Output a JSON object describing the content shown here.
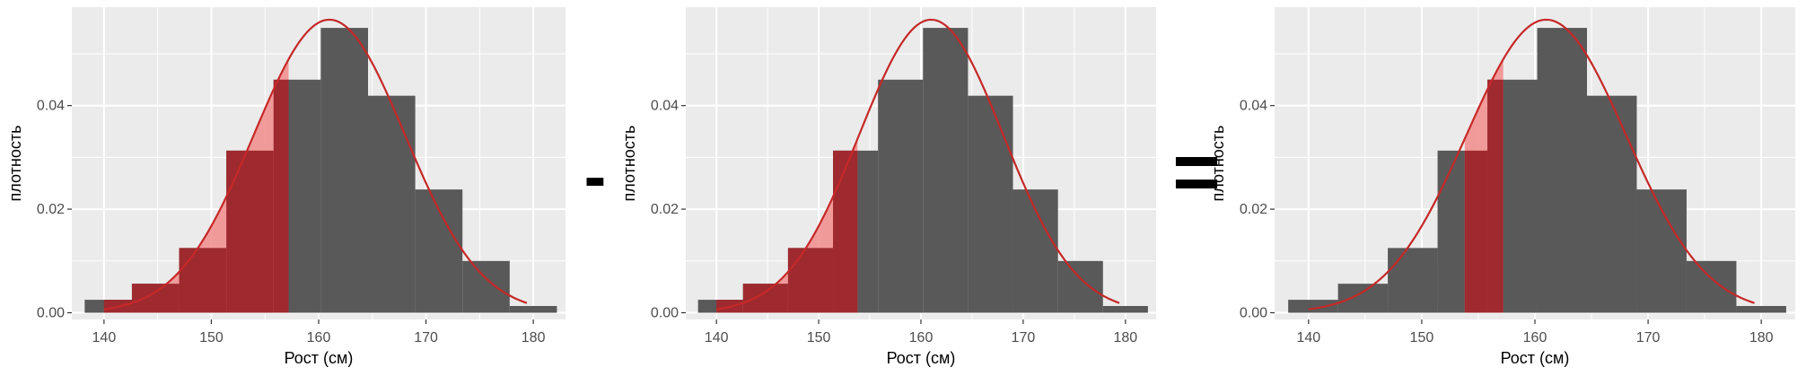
{
  "chart_data": [
    {
      "type": "bar",
      "xlabel": "Рост (см)",
      "ylabel": "плотность",
      "xlim": [
        137,
        183
      ],
      "ylim": [
        -0.0013,
        0.059
      ],
      "x_ticks": [
        140,
        150,
        160,
        170,
        180
      ],
      "y_ticks": [
        0.0,
        0.02,
        0.04
      ],
      "y_tick_labels": [
        "0.00",
        "0.02",
        "0.04"
      ],
      "grid": true,
      "bins": [
        {
          "x0": 138.2,
          "x1": 142.6,
          "y": 0.0025
        },
        {
          "x0": 142.6,
          "x1": 147.0,
          "y": 0.0056
        },
        {
          "x0": 147.0,
          "x1": 151.4,
          "y": 0.0125
        },
        {
          "x0": 151.4,
          "x1": 155.8,
          "y": 0.0313
        },
        {
          "x0": 155.8,
          "x1": 160.2,
          "y": 0.045
        },
        {
          "x0": 160.2,
          "x1": 164.6,
          "y": 0.055
        },
        {
          "x0": 164.6,
          "x1": 169.0,
          "y": 0.0419
        },
        {
          "x0": 169.0,
          "x1": 173.4,
          "y": 0.0238
        },
        {
          "x0": 173.4,
          "x1": 177.8,
          "y": 0.01
        },
        {
          "x0": 177.8,
          "x1": 182.2,
          "y": 0.0013
        }
      ],
      "normal_curve": {
        "mean": 161.0,
        "sd": 7.05,
        "x_range": [
          140,
          179.5
        ]
      },
      "shaded_region": {
        "x_from": 140,
        "x_to": 157.2
      },
      "colors": {
        "panel": "#ebebeb",
        "grid": "#ffffff",
        "bar": "#595959",
        "curve": "#c62828",
        "hist_shade": "#9e2a2f",
        "curve_shade": "#f28c8c"
      }
    },
    {
      "type": "bar",
      "xlabel": "Рост (см)",
      "ylabel": "плотность",
      "xlim": [
        137,
        183
      ],
      "ylim": [
        -0.0013,
        0.059
      ],
      "x_ticks": [
        140,
        150,
        160,
        170,
        180
      ],
      "y_ticks": [
        0.0,
        0.02,
        0.04
      ],
      "y_tick_labels": [
        "0.00",
        "0.02",
        "0.04"
      ],
      "grid": true,
      "bins": [
        {
          "x0": 138.2,
          "x1": 142.6,
          "y": 0.0025
        },
        {
          "x0": 142.6,
          "x1": 147.0,
          "y": 0.0056
        },
        {
          "x0": 147.0,
          "x1": 151.4,
          "y": 0.0125
        },
        {
          "x0": 151.4,
          "x1": 155.8,
          "y": 0.0313
        },
        {
          "x0": 155.8,
          "x1": 160.2,
          "y": 0.045
        },
        {
          "x0": 160.2,
          "x1": 164.6,
          "y": 0.055
        },
        {
          "x0": 164.6,
          "x1": 169.0,
          "y": 0.0419
        },
        {
          "x0": 169.0,
          "x1": 173.4,
          "y": 0.0238
        },
        {
          "x0": 173.4,
          "x1": 177.8,
          "y": 0.01
        },
        {
          "x0": 177.8,
          "x1": 182.2,
          "y": 0.0013
        }
      ],
      "normal_curve": {
        "mean": 161.0,
        "sd": 7.05,
        "x_range": [
          140,
          179.5
        ]
      },
      "shaded_region": {
        "x_from": 140,
        "x_to": 153.8
      },
      "colors": {
        "panel": "#ebebeb",
        "grid": "#ffffff",
        "bar": "#595959",
        "curve": "#c62828",
        "hist_shade": "#9e2a2f",
        "curve_shade": "#f28c8c"
      }
    },
    {
      "type": "bar",
      "xlabel": "Рост (см)",
      "ylabel": "плотность",
      "xlim": [
        137,
        183
      ],
      "ylim": [
        -0.0013,
        0.059
      ],
      "x_ticks": [
        140,
        150,
        160,
        170,
        180
      ],
      "y_ticks": [
        0.0,
        0.02,
        0.04
      ],
      "y_tick_labels": [
        "0.00",
        "0.02",
        "0.04"
      ],
      "grid": true,
      "bins": [
        {
          "x0": 138.2,
          "x1": 142.6,
          "y": 0.0025
        },
        {
          "x0": 142.6,
          "x1": 147.0,
          "y": 0.0056
        },
        {
          "x0": 147.0,
          "x1": 151.4,
          "y": 0.0125
        },
        {
          "x0": 151.4,
          "x1": 155.8,
          "y": 0.0313
        },
        {
          "x0": 155.8,
          "x1": 160.2,
          "y": 0.045
        },
        {
          "x0": 160.2,
          "x1": 164.6,
          "y": 0.055
        },
        {
          "x0": 164.6,
          "x1": 169.0,
          "y": 0.0419
        },
        {
          "x0": 169.0,
          "x1": 173.4,
          "y": 0.0238
        },
        {
          "x0": 173.4,
          "x1": 177.8,
          "y": 0.01
        },
        {
          "x0": 177.8,
          "x1": 182.2,
          "y": 0.0013
        }
      ],
      "normal_curve": {
        "mean": 161.0,
        "sd": 7.05,
        "x_range": [
          140,
          179.5
        ]
      },
      "shaded_region": {
        "x_from": 153.8,
        "x_to": 157.2
      },
      "colors": {
        "panel": "#ebebeb",
        "grid": "#ffffff",
        "bar": "#595959",
        "curve": "#c62828",
        "hist_shade": "#9e2a2f",
        "curve_shade": "#f28c8c"
      }
    }
  ],
  "operators": [
    "-",
    "="
  ]
}
